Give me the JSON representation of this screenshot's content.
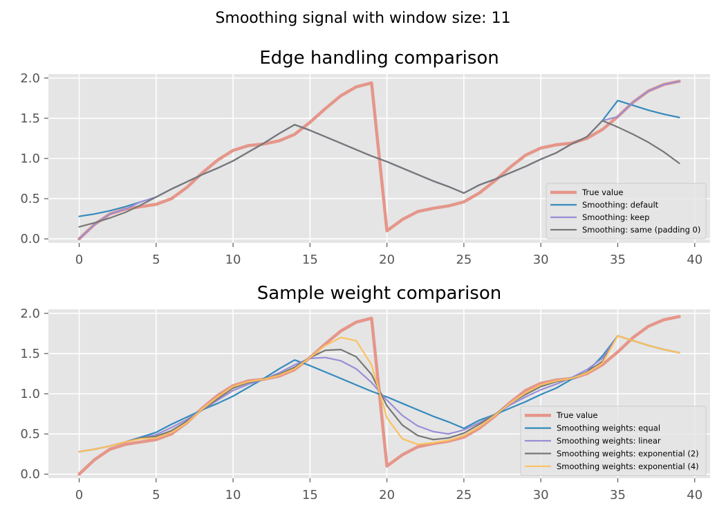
{
  "suptitle": "Smoothing signal with window size: 11",
  "chart_data": [
    {
      "type": "line",
      "title": "Edge handling comparison",
      "xlabel": "",
      "ylabel": "",
      "xlim": [
        -2,
        41
      ],
      "ylim": [
        -0.05,
        2.05
      ],
      "xticks": [
        0,
        5,
        10,
        15,
        20,
        25,
        30,
        35,
        40
      ],
      "yticks": [
        0.0,
        0.5,
        1.0,
        1.5,
        2.0
      ],
      "xtick_labels": [
        "0",
        "5",
        "10",
        "15",
        "20",
        "25",
        "30",
        "35",
        "40"
      ],
      "ytick_labels": [
        "0.0",
        "0.5",
        "1.0",
        "1.5",
        "2.0"
      ],
      "grid": true,
      "legend_position": "lower-right",
      "x": [
        0,
        1,
        2,
        3,
        4,
        5,
        6,
        7,
        8,
        9,
        10,
        11,
        12,
        13,
        14,
        15,
        16,
        17,
        18,
        19,
        20,
        21,
        22,
        23,
        24,
        25,
        26,
        27,
        28,
        29,
        30,
        31,
        32,
        33,
        34,
        35,
        36,
        37,
        38,
        39
      ],
      "series": [
        {
          "name": "True value",
          "color": "#e5968a",
          "width": 4.5,
          "values": [
            0.0,
            0.18,
            0.31,
            0.37,
            0.4,
            0.43,
            0.5,
            0.64,
            0.82,
            0.98,
            1.1,
            1.16,
            1.18,
            1.22,
            1.3,
            1.45,
            1.62,
            1.78,
            1.89,
            1.94,
            0.1,
            0.24,
            0.34,
            0.38,
            0.41,
            0.46,
            0.57,
            0.72,
            0.89,
            1.04,
            1.13,
            1.17,
            1.19,
            1.25,
            1.36,
            1.52,
            1.7,
            1.84,
            1.92,
            1.96
          ]
        },
        {
          "name": "Smoothing: default",
          "color": "#348abd",
          "width": 2.2,
          "values": [
            0.28,
            0.31,
            0.35,
            0.4,
            0.46,
            0.52,
            0.62,
            0.71,
            0.8,
            0.88,
            0.97,
            1.08,
            1.19,
            1.31,
            1.42,
            1.35,
            1.27,
            1.19,
            1.11,
            1.03,
            0.96,
            0.88,
            0.8,
            0.72,
            0.65,
            0.57,
            0.67,
            0.74,
            0.82,
            0.9,
            0.99,
            1.07,
            1.18,
            1.27,
            1.47,
            1.72,
            1.66,
            1.6,
            1.55,
            1.51
          ]
        },
        {
          "name": "Smoothing: keep",
          "color": "#988ed5",
          "width": 2.2,
          "values": [
            0.0,
            0.18,
            0.31,
            0.37,
            0.46,
            0.52,
            0.62,
            0.71,
            0.8,
            0.88,
            0.97,
            1.08,
            1.19,
            1.31,
            1.42,
            1.35,
            1.27,
            1.19,
            1.11,
            1.03,
            0.96,
            0.88,
            0.8,
            0.72,
            0.65,
            0.57,
            0.67,
            0.74,
            0.82,
            0.9,
            0.99,
            1.07,
            1.18,
            1.27,
            1.47,
            1.52,
            1.7,
            1.84,
            1.92,
            1.96
          ]
        },
        {
          "name": "Smoothing: same (padding 0)",
          "color": "#777777",
          "width": 2.2,
          "values": [
            0.15,
            0.2,
            0.26,
            0.33,
            0.42,
            0.52,
            0.62,
            0.71,
            0.8,
            0.88,
            0.97,
            1.08,
            1.19,
            1.31,
            1.42,
            1.35,
            1.27,
            1.19,
            1.11,
            1.03,
            0.96,
            0.88,
            0.8,
            0.72,
            0.65,
            0.57,
            0.67,
            0.74,
            0.82,
            0.9,
            0.99,
            1.07,
            1.18,
            1.27,
            1.47,
            1.39,
            1.3,
            1.2,
            1.08,
            0.94
          ]
        }
      ]
    },
    {
      "type": "line",
      "title": "Sample weight comparison",
      "xlabel": "",
      "ylabel": "",
      "xlim": [
        -2,
        41
      ],
      "ylim": [
        -0.05,
        2.05
      ],
      "xticks": [
        0,
        5,
        10,
        15,
        20,
        25,
        30,
        35,
        40
      ],
      "yticks": [
        0.0,
        0.5,
        1.0,
        1.5,
        2.0
      ],
      "xtick_labels": [
        "0",
        "5",
        "10",
        "15",
        "20",
        "25",
        "30",
        "35",
        "40"
      ],
      "ytick_labels": [
        "0.0",
        "0.5",
        "1.0",
        "1.5",
        "2.0"
      ],
      "grid": true,
      "legend_position": "lower-right",
      "x": [
        0,
        1,
        2,
        3,
        4,
        5,
        6,
        7,
        8,
        9,
        10,
        11,
        12,
        13,
        14,
        15,
        16,
        17,
        18,
        19,
        20,
        21,
        22,
        23,
        24,
        25,
        26,
        27,
        28,
        29,
        30,
        31,
        32,
        33,
        34,
        35,
        36,
        37,
        38,
        39
      ],
      "series": [
        {
          "name": "True value",
          "color": "#e5968a",
          "width": 4.5,
          "values": [
            0.0,
            0.18,
            0.31,
            0.37,
            0.4,
            0.43,
            0.5,
            0.64,
            0.82,
            0.98,
            1.1,
            1.16,
            1.18,
            1.22,
            1.3,
            1.45,
            1.62,
            1.78,
            1.89,
            1.94,
            0.1,
            0.24,
            0.34,
            0.38,
            0.41,
            0.46,
            0.57,
            0.72,
            0.89,
            1.04,
            1.13,
            1.17,
            1.19,
            1.25,
            1.36,
            1.52,
            1.7,
            1.84,
            1.92,
            1.96
          ]
        },
        {
          "name": "Smoothing weights: equal",
          "color": "#348abd",
          "width": 2.2,
          "values": [
            0.28,
            0.31,
            0.35,
            0.4,
            0.46,
            0.52,
            0.62,
            0.71,
            0.8,
            0.88,
            0.97,
            1.08,
            1.19,
            1.31,
            1.42,
            1.35,
            1.27,
            1.19,
            1.11,
            1.03,
            0.96,
            0.88,
            0.8,
            0.72,
            0.65,
            0.57,
            0.67,
            0.74,
            0.82,
            0.9,
            0.99,
            1.07,
            1.18,
            1.27,
            1.47,
            1.72,
            1.66,
            1.6,
            1.55,
            1.51
          ]
        },
        {
          "name": "Smoothing weights: linear",
          "color": "#988ed5",
          "width": 2.2,
          "values": [
            0.28,
            0.31,
            0.35,
            0.4,
            0.45,
            0.49,
            0.58,
            0.68,
            0.8,
            0.92,
            1.04,
            1.12,
            1.18,
            1.26,
            1.36,
            1.44,
            1.45,
            1.41,
            1.31,
            1.14,
            0.92,
            0.73,
            0.6,
            0.53,
            0.5,
            0.55,
            0.64,
            0.74,
            0.86,
            0.96,
            1.05,
            1.12,
            1.2,
            1.3,
            1.44,
            1.72,
            1.66,
            1.6,
            1.55,
            1.51
          ]
        },
        {
          "name": "Smoothing weights: exponential (2)",
          "color": "#777777",
          "width": 2.2,
          "values": [
            0.28,
            0.31,
            0.35,
            0.4,
            0.45,
            0.47,
            0.54,
            0.66,
            0.8,
            0.94,
            1.07,
            1.14,
            1.18,
            1.24,
            1.33,
            1.45,
            1.54,
            1.55,
            1.46,
            1.24,
            0.85,
            0.61,
            0.48,
            0.43,
            0.45,
            0.51,
            0.62,
            0.74,
            0.88,
            0.99,
            1.09,
            1.15,
            1.19,
            1.27,
            1.4,
            1.72,
            1.66,
            1.6,
            1.55,
            1.51
          ]
        },
        {
          "name": "Smoothing weights: exponential (4)",
          "color": "#fbc15e",
          "width": 2.2,
          "values": [
            0.28,
            0.31,
            0.35,
            0.4,
            0.44,
            0.45,
            0.52,
            0.64,
            0.81,
            0.96,
            1.09,
            1.15,
            1.18,
            1.23,
            1.31,
            1.45,
            1.6,
            1.7,
            1.66,
            1.36,
            0.7,
            0.44,
            0.37,
            0.39,
            0.42,
            0.48,
            0.59,
            0.73,
            0.88,
            1.01,
            1.11,
            1.16,
            1.19,
            1.26,
            1.38,
            1.72,
            1.66,
            1.6,
            1.55,
            1.51
          ]
        }
      ]
    }
  ]
}
